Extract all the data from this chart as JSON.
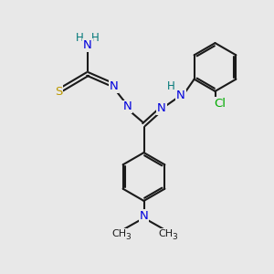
{
  "bg_color": "#e8e8e8",
  "bond_color": "#1a1a1a",
  "N_color": "#0000dd",
  "H_color": "#007777",
  "S_color": "#bb9900",
  "Cl_color": "#00aa00",
  "dpi": 100,
  "figsize": [
    3.0,
    3.0
  ],
  "xlim": [
    0,
    10
  ],
  "ylim": [
    0,
    10
  ]
}
